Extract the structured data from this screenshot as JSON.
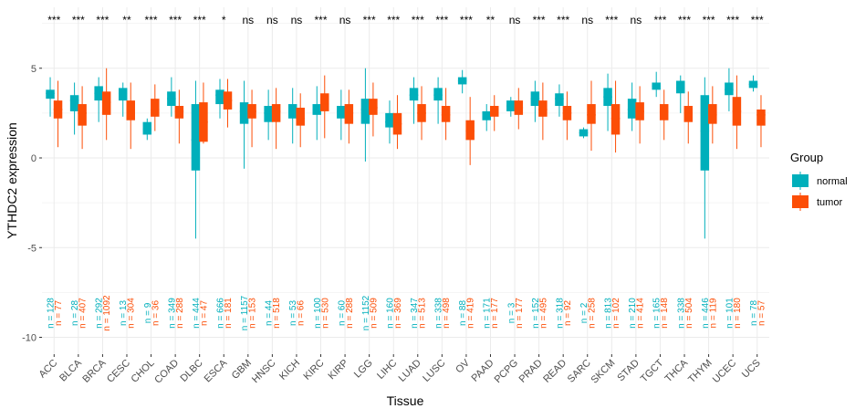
{
  "chart_data": {
    "type": "boxplot",
    "xlabel": "Tissue",
    "ylabel": "YTHDC2 expression",
    "ylim": [
      -10.8,
      7.5
    ],
    "yticks": [
      -10,
      -5,
      0,
      5
    ],
    "grid": true,
    "legend": {
      "title": "Group",
      "placement": "right",
      "entries": [
        {
          "label": "normal",
          "color": "#00AFBB"
        },
        {
          "label": "tumor",
          "color": "#FC4E07"
        }
      ]
    },
    "colors": {
      "normal": "#00AFBB",
      "tumor": "#FC4E07"
    },
    "categories": [
      "ACC",
      "BLCA",
      "BRCA",
      "CESC",
      "CHOL",
      "COAD",
      "DLBC",
      "ESCA",
      "GBM",
      "HNSC",
      "KICH",
      "KIRC",
      "KIRP",
      "LGG",
      "LIHC",
      "LUAD",
      "LUSC",
      "OV",
      "PAAD",
      "PCPG",
      "PRAD",
      "READ",
      "SARC",
      "SKCM",
      "STAD",
      "TGCT",
      "THCA",
      "THYM",
      "UCEC",
      "UCS"
    ],
    "significance": [
      "***",
      "***",
      "***",
      "**",
      "***",
      "***",
      "***",
      "*",
      "ns",
      "ns",
      "ns",
      "***",
      "ns",
      "***",
      "***",
      "***",
      "***",
      "***",
      "**",
      "ns",
      "***",
      "***",
      "ns",
      "***",
      "ns",
      "***",
      "***",
      "***",
      "***",
      "***"
    ],
    "series": [
      {
        "name": "normal",
        "n": [
          128,
          28,
          292,
          13,
          9,
          349,
          444,
          666,
          1157,
          44,
          53,
          100,
          60,
          1152,
          160,
          347,
          338,
          88,
          171,
          3,
          152,
          318,
          2,
          813,
          210,
          165,
          338,
          446,
          101,
          78
        ],
        "boxes": [
          [
            2.3,
            3.3,
            3.6,
            3.8,
            4.5
          ],
          [
            1.3,
            2.6,
            3.2,
            3.5,
            4.2
          ],
          [
            2.0,
            3.2,
            3.6,
            4.0,
            4.5
          ],
          [
            2.3,
            3.2,
            3.6,
            3.9,
            4.2
          ],
          [
            1.0,
            1.3,
            1.6,
            2.0,
            2.2
          ],
          [
            2.3,
            2.9,
            3.3,
            3.7,
            4.5
          ],
          [
            -4.5,
            -0.7,
            1.0,
            3.0,
            4.3
          ],
          [
            2.2,
            3.0,
            3.5,
            3.8,
            4.4
          ],
          [
            -0.6,
            1.9,
            2.6,
            3.1,
            4.3
          ],
          [
            1.0,
            2.0,
            2.5,
            2.9,
            3.8
          ],
          [
            0.8,
            2.2,
            2.6,
            3.0,
            3.9
          ],
          [
            1.0,
            2.4,
            2.7,
            3.0,
            4.0
          ],
          [
            1.0,
            2.2,
            2.6,
            2.9,
            3.8
          ],
          [
            -0.2,
            1.9,
            2.7,
            3.3,
            5.0
          ],
          [
            0.8,
            1.7,
            2.0,
            2.5,
            3.2
          ],
          [
            1.9,
            3.2,
            3.5,
            3.9,
            4.5
          ],
          [
            1.9,
            3.2,
            3.5,
            3.9,
            4.5
          ],
          [
            3.6,
            4.1,
            4.3,
            4.5,
            4.9
          ],
          [
            1.5,
            2.1,
            2.3,
            2.6,
            3.0
          ],
          [
            2.3,
            2.6,
            2.9,
            3.2,
            3.4
          ],
          [
            2.0,
            2.9,
            3.3,
            3.7,
            4.3
          ],
          [
            2.3,
            2.9,
            3.3,
            3.6,
            4.1
          ],
          [
            1.1,
            1.2,
            1.4,
            1.6,
            1.7
          ],
          [
            1.5,
            2.9,
            3.4,
            3.9,
            4.7
          ],
          [
            1.5,
            2.2,
            2.7,
            3.3,
            4.2
          ],
          [
            3.4,
            3.8,
            4.0,
            4.2,
            4.8
          ],
          [
            2.5,
            3.6,
            3.9,
            4.3,
            4.6
          ],
          [
            -4.5,
            -0.7,
            1.5,
            3.5,
            4.5
          ],
          [
            2.6,
            3.5,
            3.8,
            4.2,
            5.0
          ],
          [
            3.7,
            3.9,
            4.1,
            4.3,
            4.6
          ]
        ]
      },
      {
        "name": "tumor",
        "n": [
          77,
          407,
          1092,
          304,
          36,
          288,
          47,
          181,
          153,
          518,
          66,
          530,
          288,
          509,
          369,
          513,
          498,
          419,
          177,
          177,
          495,
          92,
          258,
          102,
          414,
          148,
          504,
          119,
          180,
          57
        ],
        "boxes": [
          [
            0.6,
            2.2,
            2.7,
            3.2,
            4.3
          ],
          [
            0.5,
            1.8,
            2.5,
            3.0,
            4.0
          ],
          [
            1.0,
            2.4,
            3.1,
            3.7,
            5.0
          ],
          [
            0.5,
            2.1,
            2.7,
            3.2,
            4.2
          ],
          [
            1.5,
            2.3,
            2.7,
            3.3,
            4.1
          ],
          [
            0.8,
            2.2,
            2.6,
            2.9,
            3.8
          ],
          [
            0.8,
            0.9,
            2.0,
            3.1,
            4.2
          ],
          [
            1.7,
            2.7,
            3.2,
            3.7,
            4.4
          ],
          [
            0.6,
            2.2,
            2.6,
            3.0,
            3.8
          ],
          [
            0.5,
            2.0,
            2.6,
            3.0,
            3.9
          ],
          [
            0.6,
            1.8,
            2.2,
            2.8,
            3.6
          ],
          [
            1.1,
            2.6,
            3.0,
            3.6,
            4.6
          ],
          [
            0.8,
            1.9,
            2.5,
            3.0,
            3.8
          ],
          [
            1.2,
            2.4,
            2.8,
            3.3,
            4.2
          ],
          [
            0.5,
            1.3,
            1.9,
            2.5,
            3.5
          ],
          [
            1.0,
            2.0,
            2.5,
            3.0,
            4.0
          ],
          [
            1.0,
            2.0,
            2.4,
            2.9,
            3.9
          ],
          [
            -0.4,
            1.0,
            1.5,
            2.1,
            3.4
          ],
          [
            1.5,
            2.3,
            2.7,
            2.9,
            3.5
          ],
          [
            1.6,
            2.4,
            2.8,
            3.2,
            3.9
          ],
          [
            1.0,
            2.3,
            2.7,
            3.2,
            4.2
          ],
          [
            1.0,
            2.1,
            2.5,
            2.9,
            3.7
          ],
          [
            0.4,
            1.9,
            2.4,
            3.0,
            4.3
          ],
          [
            0.3,
            1.3,
            2.2,
            3.0,
            4.3
          ],
          [
            0.8,
            2.1,
            2.6,
            3.1,
            4.0
          ],
          [
            1.0,
            2.1,
            2.6,
            3.0,
            3.8
          ],
          [
            0.8,
            2.0,
            2.5,
            2.9,
            3.7
          ],
          [
            0.8,
            1.9,
            2.4,
            3.0,
            4.0
          ],
          [
            0.5,
            1.8,
            2.6,
            3.4,
            4.6
          ],
          [
            0.6,
            1.8,
            2.4,
            2.7,
            3.5
          ]
        ]
      }
    ]
  }
}
